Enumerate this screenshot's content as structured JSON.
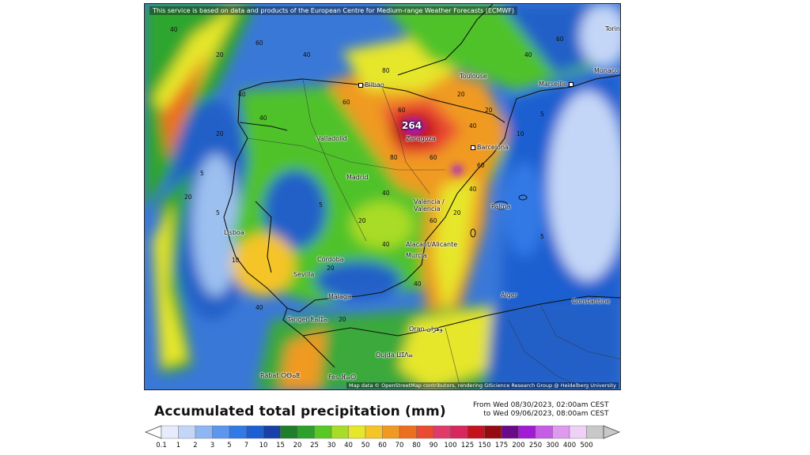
{
  "map": {
    "attribution_top": "This service is based on data and products of the European Centre for Medium-range Weather Forecasts (ECMWF)",
    "attribution_bottom": "Map data © OpenStreetMap contributors, rendering GIScience Research Group @ Heidelberg University",
    "max_value": "264",
    "cities": [
      {
        "name": "Bilbao",
        "key": "bilbao"
      },
      {
        "name": "Toulouse",
        "key": "toulouse"
      },
      {
        "name": "Marseille",
        "key": "marseille"
      },
      {
        "name": "Monaco",
        "key": "monaco"
      },
      {
        "name": "Torin",
        "key": "torin"
      },
      {
        "name": "Valladolid",
        "key": "valladolid"
      },
      {
        "name": "Zaragoza",
        "key": "zaragoza"
      },
      {
        "name": "Barcelona",
        "key": "barcelona"
      },
      {
        "name": "Madrid",
        "key": "madrid"
      },
      {
        "name": "València / Valencia",
        "key": "valencia"
      },
      {
        "name": "Palma",
        "key": "palma"
      },
      {
        "name": "Lisboa",
        "key": "lisboa"
      },
      {
        "name": "Alacant/Alicante",
        "key": "alicante"
      },
      {
        "name": "Murcia",
        "key": "murcia"
      },
      {
        "name": "Córdoba",
        "key": "cordoba"
      },
      {
        "name": "Sevilla",
        "key": "sevilla"
      },
      {
        "name": "Málaga",
        "key": "malaga"
      },
      {
        "name": "Alger",
        "key": "alger"
      },
      {
        "name": "Constantine",
        "key": "constantine"
      },
      {
        "name": "Tanger ⵟⴰⵏⵊⴰ",
        "key": "tanger"
      },
      {
        "name": "Oran وهران",
        "key": "oran"
      },
      {
        "name": "Oujda ⵡⵊⴷⴰ",
        "key": "oujda"
      },
      {
        "name": "Rabat ⵔⴱⴰⵟ",
        "key": "rabat"
      },
      {
        "name": "Fes ⴼⴰⵙ",
        "key": "fes"
      }
    ],
    "contour_labels": [
      "40",
      "20",
      "60",
      "40",
      "80",
      "60",
      "40",
      "40",
      "20",
      "5",
      "60",
      "80",
      "60",
      "40",
      "20",
      "5",
      "10",
      "20",
      "40",
      "60",
      "40",
      "20",
      "5",
      "60",
      "40",
      "20",
      "10",
      "40",
      "5",
      "20",
      "60",
      "40",
      "20",
      "5",
      "40",
      "20"
    ]
  },
  "title": "Accumulated total precipitation (mm)",
  "period": {
    "from": "From Wed 08/30/2023, 02:00am CEST",
    "to": "to Wed 09/06/2023, 08:00am CEST"
  },
  "legend": {
    "labels": [
      "0.1",
      "1",
      "2",
      "3",
      "5",
      "7",
      "10",
      "15",
      "20",
      "25",
      "30",
      "40",
      "50",
      "60",
      "70",
      "80",
      "90",
      "100",
      "125",
      "150",
      "175",
      "200",
      "250",
      "300",
      "400",
      "500"
    ],
    "colors": [
      "#e6ecfb",
      "#c4d6f7",
      "#8fb6f3",
      "#5c96ef",
      "#3179e6",
      "#1d5fd0",
      "#1840a8",
      "#1f7d2b",
      "#2da02c",
      "#58c924",
      "#a9dc28",
      "#e6e62a",
      "#f5c427",
      "#f09a23",
      "#ec6f1d",
      "#ea4a32",
      "#e03a6a",
      "#d8275c",
      "#c4131f",
      "#960b12",
      "#6a0a88",
      "#a11bd5",
      "#c55de6",
      "#dd9aee",
      "#efd0f6",
      "#c8c8c8"
    ]
  }
}
